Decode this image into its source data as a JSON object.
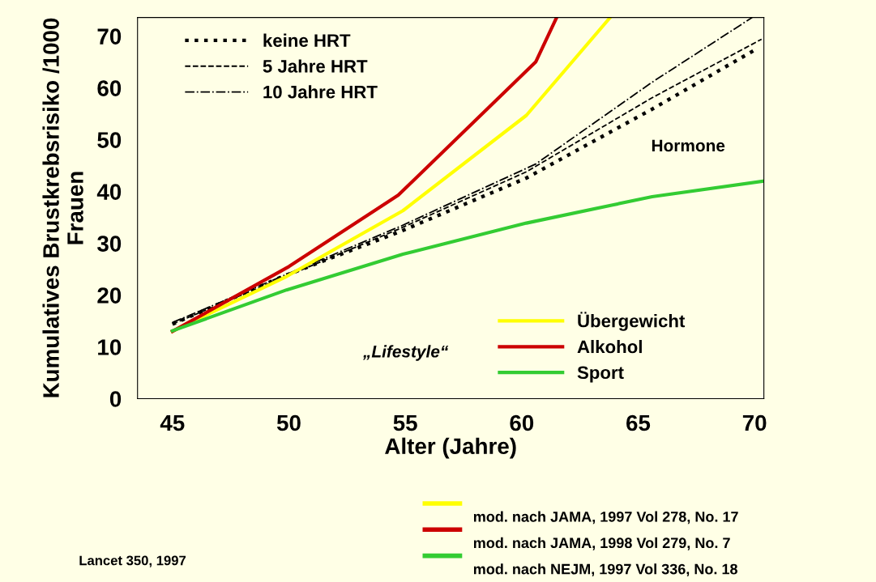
{
  "chart_data": {
    "type": "line",
    "xlabel": "Alter (Jahre)",
    "ylabel": "Kumulatives Brustkrebsrisiko /1000\nFrauen",
    "xlim": [
      43.5,
      70.4
    ],
    "xticks": [
      45,
      50,
      55,
      60,
      65,
      70
    ],
    "ylim": [
      0,
      73.6
    ],
    "yticks": [
      0,
      10,
      20,
      30,
      40,
      50,
      60,
      70
    ],
    "grid": false,
    "legend": "top left",
    "series": [
      {
        "name": "keine HRT",
        "color": "#000000",
        "line_style": "dotted",
        "x": [
          45,
          49.8,
          54.8,
          60.2,
          65.6,
          70
        ],
        "values": [
          14.4,
          23.7,
          32.3,
          42.6,
          55.9,
          67.3
        ]
      },
      {
        "name": "5 Jahre HRT",
        "color": "#000000",
        "line_style": "dashed",
        "x": [
          45,
          54.8,
          60.2,
          65.6,
          70.3
        ],
        "values": [
          14.4,
          32.9,
          43.8,
          58.1,
          69.4
        ]
      },
      {
        "name": "10 Jahre HRT",
        "color": "#000000",
        "line_style": "dashdot",
        "x": [
          45,
          54.8,
          60.6,
          65.6,
          69.9
        ],
        "values": [
          14.7,
          33.3,
          45.3,
          61.1,
          73.6
        ]
      },
      {
        "name": "Übergewicht",
        "color": "#ffff00",
        "x": [
          45,
          49.9,
          54.9,
          60.2,
          63.8
        ],
        "values": [
          13,
          23.6,
          36.3,
          54.7,
          73.6
        ]
      },
      {
        "name": "Alkohol",
        "color": "#cc0000",
        "x": [
          45,
          50,
          54.7,
          60.6,
          61.5
        ],
        "values": [
          13,
          25.5,
          39.3,
          65,
          73.6
        ]
      },
      {
        "name": "Sport",
        "color": "#33cc33",
        "x": [
          45,
          49.9,
          54.9,
          60.2,
          65.6,
          70.4
        ],
        "values": [
          13.1,
          21,
          27.9,
          33.9,
          39,
          42
        ]
      }
    ],
    "annotations": [
      "Hormone",
      "„Lifestyle“",
      "mod. nach JAMA, 1997 Vol 278, No. 17",
      "mod. nach JAMA, 1998 Vol 279, No. 7",
      "mod. nach NEJM, 1997 Vol 336, No. 18",
      "Lancet 350, 1997"
    ]
  }
}
